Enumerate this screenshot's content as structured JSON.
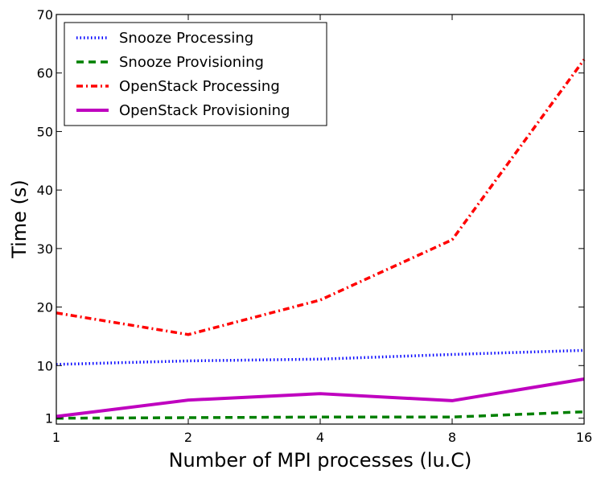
{
  "chart_data": {
    "type": "line",
    "title": "",
    "xlabel": "Number of MPI processes (lu.C)",
    "ylabel": "Time (s)",
    "x": [
      "1",
      "2",
      "4",
      "8",
      "16"
    ],
    "xscale": "log2",
    "ylim": [
      0,
      70
    ],
    "yticks": [
      1,
      10,
      20,
      30,
      40,
      50,
      60,
      70
    ],
    "grid": false,
    "legend_position": "top-left",
    "series": [
      {
        "name": "Snooze Processing",
        "color": "#0000ff",
        "style": "dotted",
        "values": [
          10.2,
          10.8,
          11.1,
          11.9,
          12.6
        ]
      },
      {
        "name": "Snooze Provisioning",
        "color": "#008000",
        "style": "dashed",
        "values": [
          1.0,
          1.1,
          1.2,
          1.2,
          2.1
        ]
      },
      {
        "name": "OpenStack Processing",
        "color": "#ff0000",
        "style": "dashdot",
        "values": [
          19.0,
          15.3,
          21.2,
          31.5,
          62.3
        ]
      },
      {
        "name": "OpenStack Provisioning",
        "color": "#bf00bf",
        "style": "solid",
        "values": [
          1.3,
          4.1,
          5.2,
          4.0,
          7.7
        ]
      }
    ]
  }
}
